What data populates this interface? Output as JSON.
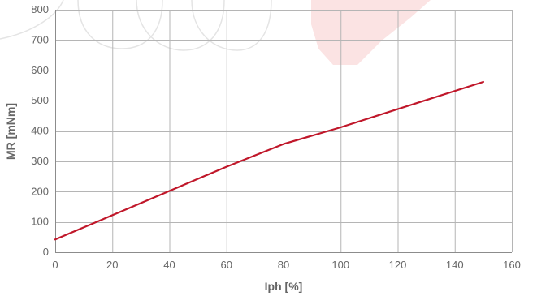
{
  "chart_data": {
    "type": "line",
    "xlabel": "Iph [%]",
    "ylabel": "MR [mNm]",
    "xlim": [
      0,
      160
    ],
    "ylim": [
      0,
      800
    ],
    "x_ticks": [
      0,
      20,
      40,
      60,
      80,
      100,
      120,
      140,
      160
    ],
    "y_ticks": [
      0,
      100,
      200,
      300,
      400,
      500,
      600,
      700,
      800
    ],
    "x_tick_labels": [
      "0",
      "20",
      "40",
      "60",
      "80",
      "100",
      "120",
      "140",
      "160"
    ],
    "y_tick_labels": [
      "0",
      "100",
      "200",
      "300",
      "400",
      "500",
      "600",
      "700",
      "800"
    ],
    "grid": true,
    "series": [
      {
        "color": "#c0172a",
        "x": [
          0,
          20,
          40,
          60,
          80,
          100,
          120,
          150
        ],
        "y": [
          42,
          122,
          202,
          282,
          357,
          412,
          472,
          562
        ]
      }
    ]
  },
  "colors": {
    "grid": "#b5b5b5",
    "text": "#666666",
    "watermark_outline": "#e4e4e4",
    "watermark_accent": "#fbe3e3"
  }
}
